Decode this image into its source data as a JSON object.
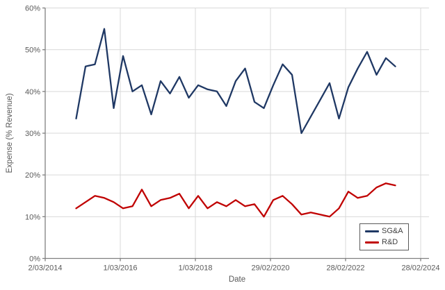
{
  "colors": {
    "background": "#FFFFFF",
    "axis": "#7F7F7F",
    "grid": "#D9D9D9",
    "tick_text": "#595959",
    "legend_border": "#595959",
    "sgna_line": "#1F3864",
    "rnd_line": "#C00000"
  },
  "chart_data": {
    "type": "line",
    "title": "",
    "xlabel": "Date",
    "ylabel": "Expense (% Revenue)",
    "ylim": [
      0,
      60
    ],
    "y_unit": "percent of revenue",
    "grid": true,
    "legend_position": "inside-bottom-right",
    "y_tick_labels": [
      "0%",
      "10%",
      "20%",
      "30%",
      "40%",
      "50%",
      "60%"
    ],
    "x_tick_labels": [
      "2/03/2014",
      "1/03/2016",
      "1/03/2018",
      "29/02/2020",
      "28/02/2022",
      "28/02/2024"
    ],
    "x": [
      "Nov-14",
      "Feb-15",
      "May-15",
      "Aug-15",
      "Nov-15",
      "Feb-16",
      "May-16",
      "Aug-16",
      "Nov-16",
      "Feb-17",
      "May-17",
      "Aug-17",
      "Nov-17",
      "Feb-18",
      "May-18",
      "Aug-18",
      "Nov-18",
      "Feb-19",
      "May-19",
      "Aug-19",
      "Nov-19",
      "Feb-20",
      "May-20",
      "Aug-20",
      "Nov-20",
      "Feb-21",
      "May-21",
      "Aug-21",
      "Nov-21",
      "Feb-22",
      "May-22",
      "Aug-22",
      "Nov-22",
      "Feb-23",
      "May-23"
    ],
    "series": [
      {
        "name": "SG&A",
        "color": "#1F3864",
        "values": [
          33.5,
          46,
          46.5,
          55,
          36,
          48.5,
          40,
          41.5,
          34.5,
          42.5,
          39.5,
          43.5,
          38.5,
          41.5,
          40.5,
          40,
          36.5,
          42.5,
          45.5,
          37.5,
          36,
          41.5,
          46.5,
          44,
          30,
          34,
          38,
          42,
          33.5,
          41,
          45.5,
          49.5,
          44,
          48,
          46
        ]
      },
      {
        "name": "R&D",
        "color": "#C00000",
        "values": [
          12,
          13.5,
          15,
          14.5,
          13.5,
          12,
          12.5,
          16.5,
          12.5,
          14,
          14.5,
          15.5,
          12,
          15,
          12,
          13.5,
          12.5,
          14,
          12.5,
          13,
          10,
          14,
          15,
          13,
          10.5,
          11,
          10.5,
          10,
          12,
          16,
          14.5,
          15,
          17,
          18,
          17.5
        ]
      }
    ]
  }
}
